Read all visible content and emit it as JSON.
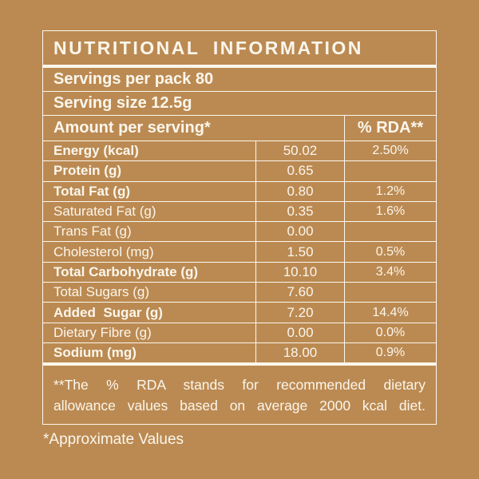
{
  "theme": {
    "background": "#BB8A52",
    "foreground": "#FBF6EC"
  },
  "label": {
    "title": "NUTRITIONAL INFORMATION",
    "servings_per_pack": "Servings per pack 80",
    "serving_size": "Serving size 12.5g",
    "columns": {
      "amount_header": "Amount per serving*",
      "rda_header": "% RDA**"
    },
    "rows": [
      {
        "name": "Energy (kcal)",
        "value": "50.02",
        "rda": "2.50%",
        "bold": true
      },
      {
        "name": "Protein (g)",
        "value": "0.65",
        "rda": "",
        "bold": true
      },
      {
        "name": "Total Fat (g)",
        "value": "0.80",
        "rda": "1.2%",
        "bold": true
      },
      {
        "name": "Saturated Fat (g)",
        "value": "0.35",
        "rda": "1.6%",
        "bold": false
      },
      {
        "name": "Trans Fat (g)",
        "value": "0.00",
        "rda": "",
        "bold": false
      },
      {
        "name": "Cholesterol (mg)",
        "value": "1.50",
        "rda": "0.5%",
        "bold": false
      },
      {
        "name": "Total Carbohydrate (g)",
        "value": "10.10",
        "rda": "3.4%",
        "bold": true
      },
      {
        "name": "Total Sugars (g)",
        "value": "7.60",
        "rda": "",
        "bold": false
      },
      {
        "name": "Added  Sugar (g)",
        "value": "7.20",
        "rda": "14.4%",
        "bold": true
      },
      {
        "name": "Dietary Fibre (g)",
        "value": "0.00",
        "rda": "0.0%",
        "bold": false
      },
      {
        "name": "Sodium (mg)",
        "value": "18.00",
        "rda": "0.9%",
        "bold": true
      }
    ],
    "footnote_lines": [
      "**The % RDA stands for recommended dietary",
      "allowance values based on average 2000 kcal diet."
    ],
    "approximate_note": "*Approximate Values"
  }
}
